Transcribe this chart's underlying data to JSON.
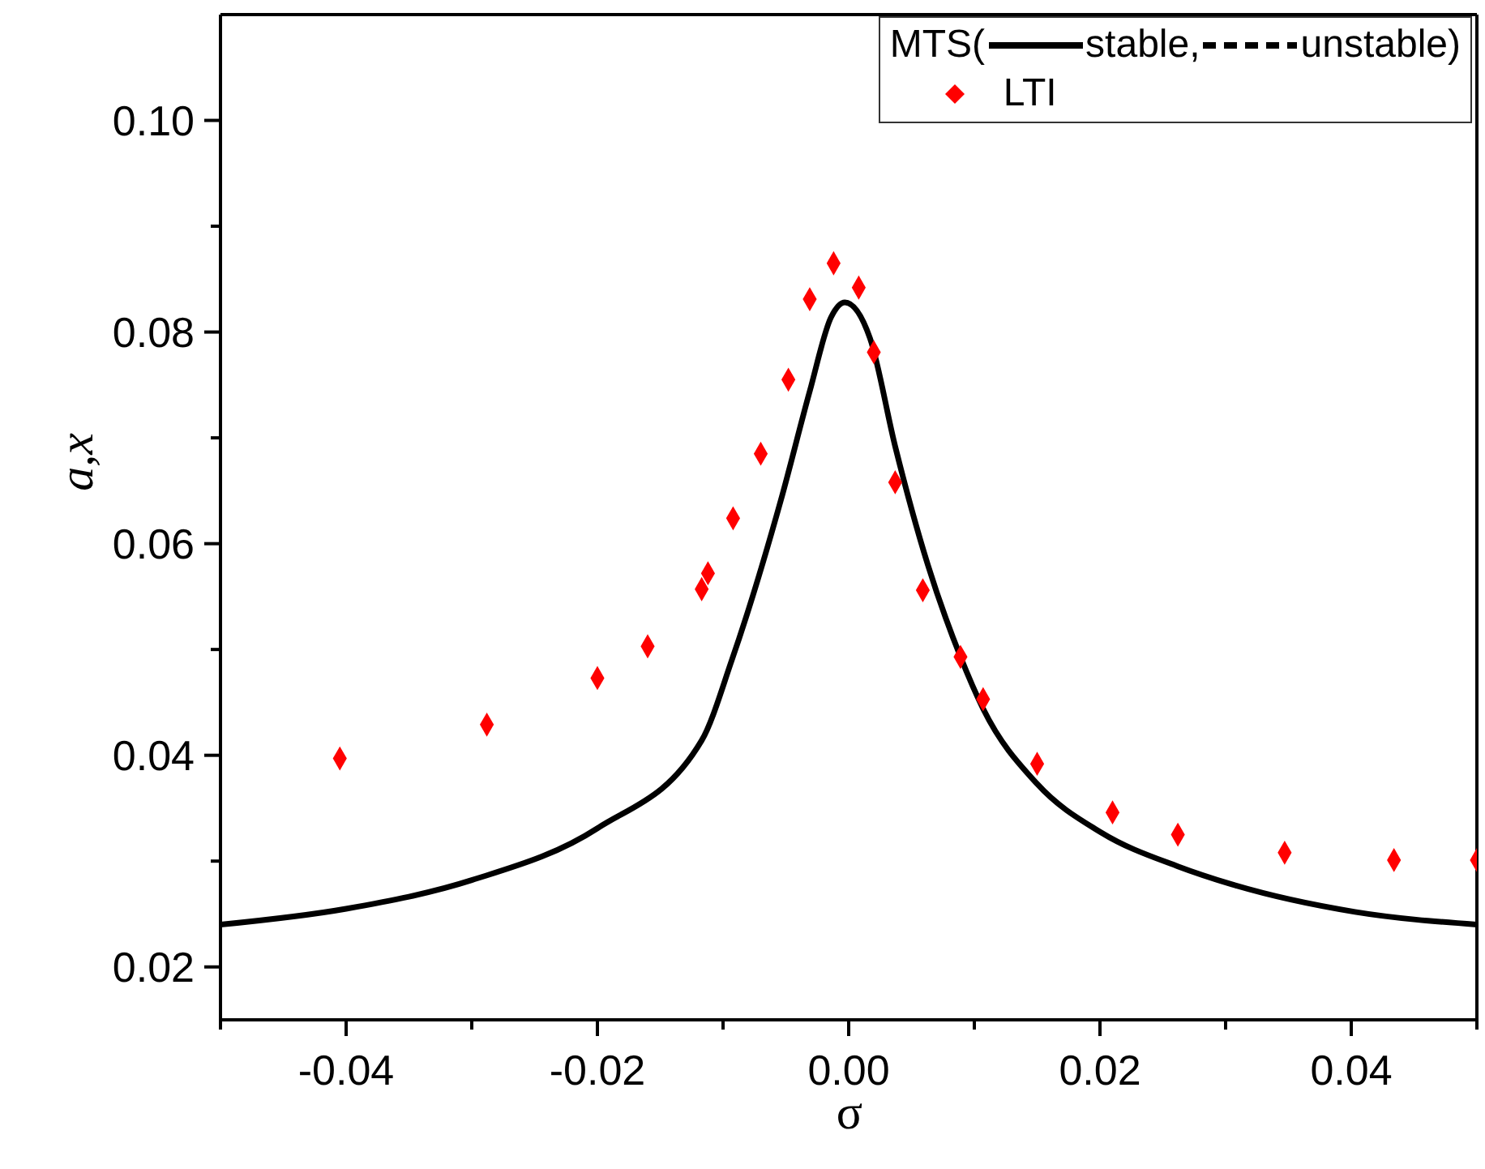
{
  "chart_data": {
    "type": "line",
    "xlabel": "σ",
    "ylabel": "a,x",
    "legend_title": "MTS(",
    "legend": "top right",
    "xlim": [
      -0.05,
      0.05
    ],
    "ylim": [
      0.015,
      0.11
    ],
    "xticks": [
      {
        "value": -0.05,
        "label": null
      },
      -0.04,
      {
        "value": -0.03,
        "label": null
      },
      -0.02,
      {
        "value": -0.01,
        "label": null
      },
      {
        "value": 0,
        "label": "0.00"
      },
      {
        "value": 0.01,
        "label": null
      },
      0.02,
      {
        "value": 0.03,
        "label": null
      },
      0.04,
      {
        "value": 0.05,
        "label": null
      }
    ],
    "yticks": [
      0.02,
      {
        "value": 0.03,
        "label": null
      },
      0.04,
      {
        "value": 0.05,
        "label": null
      },
      0.06,
      {
        "value": 0.07,
        "label": null
      },
      0.08,
      {
        "value": 0.09,
        "label": null
      },
      {
        "value": 0.1,
        "label": "0.10"
      }
    ],
    "series": [
      {
        "name": "stable,",
        "color": "#000000",
        "line_style": "solid",
        "marker": "none",
        "x": [
          -0.05,
          -0.04,
          -0.03,
          -0.02,
          -0.0117,
          -0.0093,
          -0.0054,
          -0.0031,
          -0.0014,
          -0.0003,
          0.0017,
          0.0037,
          0.0063,
          0.0089,
          0.0107,
          0.015,
          0.0201,
          0.0262,
          0.0305,
          0.0403,
          0.05
        ],
        "values": [
          0.024,
          0.0255,
          0.0282,
          0.0331,
          0.0414,
          0.049,
          0.0641,
          0.0744,
          0.0814,
          0.0828,
          0.0794,
          0.0692,
          0.058,
          0.0493,
          0.0444,
          0.0373,
          0.0327,
          0.0295,
          0.0278,
          0.0252,
          0.024
        ]
      },
      {
        "name": "unstable)",
        "type": "line",
        "color": "#000000",
        "line_style": "dashed",
        "marker": "none"
      },
      {
        "name": "LTI",
        "type": "scatter",
        "color": "#ff0000",
        "marker": "diamond",
        "x": [
          -0.0405,
          -0.0288,
          -0.02,
          -0.016,
          -0.0117,
          -0.0112,
          -0.0092,
          -0.007,
          -0.0048,
          -0.0031,
          -0.0012,
          0.0008,
          0.002,
          0.0037,
          0.0059,
          0.0089,
          0.0107,
          0.015,
          0.021,
          0.0262,
          0.0347,
          0.0434,
          0.05
        ],
        "values": [
          0.0397,
          0.0429,
          0.0473,
          0.0503,
          0.0557,
          0.0572,
          0.0624,
          0.0685,
          0.0755,
          0.0831,
          0.0865,
          0.0842,
          0.0781,
          0.0658,
          0.0556,
          0.0493,
          0.0453,
          0.0392,
          0.0346,
          0.0325,
          0.0308,
          0.0301,
          0.0301
        ]
      }
    ]
  }
}
